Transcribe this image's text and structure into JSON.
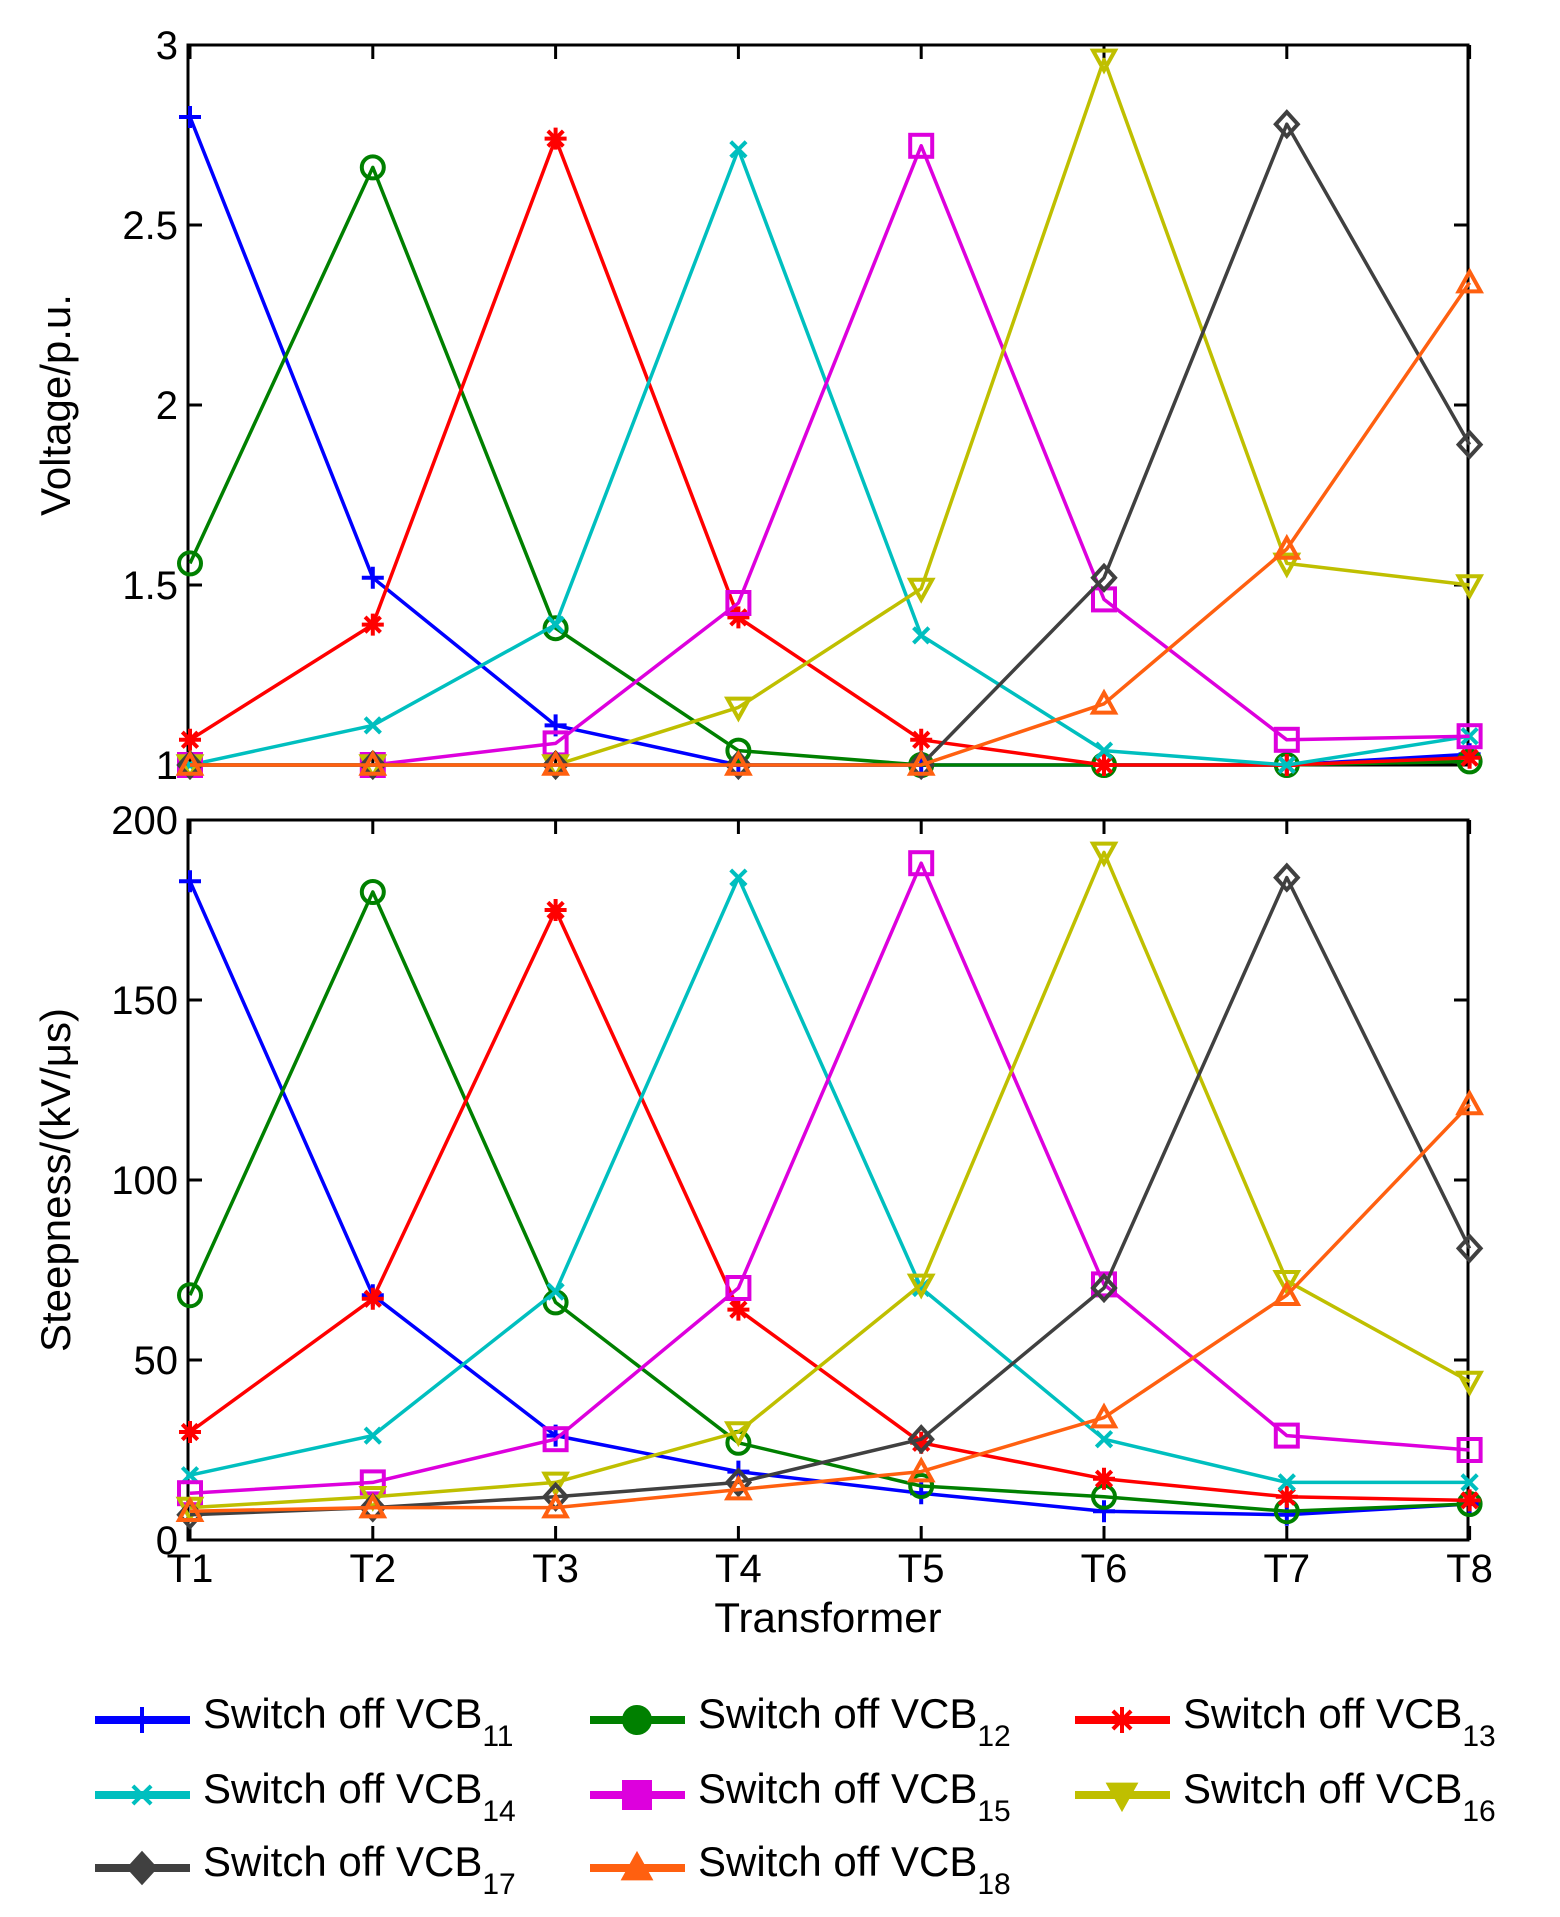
{
  "chart_data": [
    {
      "type": "line",
      "categories": [
        "T1",
        "T2",
        "T3",
        "T4",
        "T5",
        "T6",
        "T7",
        "T8"
      ],
      "ylabel": "Voltage/p.u.",
      "xlabel": "",
      "ylim": [
        1,
        3
      ],
      "yticks": [
        1,
        1.5,
        2,
        2.5,
        3
      ],
      "ytick_labels": [
        "1",
        "1.5",
        "2",
        "2.5",
        "3"
      ],
      "grid": false,
      "series": [
        {
          "name": "Switch off VCB11",
          "values": [
            2.8,
            1.52,
            1.11,
            1.0,
            1.0,
            1.0,
            1.0,
            1.03
          ]
        },
        {
          "name": "Switch off VCB12",
          "values": [
            1.56,
            2.66,
            1.38,
            1.04,
            1.0,
            1.0,
            1.0,
            1.01
          ]
        },
        {
          "name": "Switch off VCB13",
          "values": [
            1.07,
            1.39,
            2.74,
            1.41,
            1.07,
            1.0,
            1.0,
            1.02
          ]
        },
        {
          "name": "Switch off VCB14",
          "values": [
            1.0,
            1.11,
            1.39,
            2.71,
            1.36,
            1.04,
            1.0,
            1.08
          ]
        },
        {
          "name": "Switch off VCB15",
          "values": [
            1.0,
            1.0,
            1.06,
            1.45,
            2.72,
            1.46,
            1.07,
            1.08
          ]
        },
        {
          "name": "Switch off VCB16",
          "values": [
            1.0,
            1.0,
            1.0,
            1.16,
            1.49,
            2.96,
            1.56,
            1.5
          ]
        },
        {
          "name": "Switch off VCB17",
          "values": [
            1.0,
            1.0,
            1.0,
            1.0,
            1.0,
            1.52,
            2.78,
            1.89
          ]
        },
        {
          "name": "Switch off VCB18",
          "values": [
            1.0,
            1.0,
            1.0,
            1.0,
            1.0,
            1.17,
            1.6,
            2.34
          ]
        }
      ]
    },
    {
      "type": "line",
      "categories": [
        "T1",
        "T2",
        "T3",
        "T4",
        "T5",
        "T6",
        "T7",
        "T8"
      ],
      "ylabel": "Steepness/(kV/μs)",
      "xlabel": "Transformer",
      "ylim": [
        0,
        200
      ],
      "yticks": [
        0,
        50,
        100,
        150,
        200
      ],
      "ytick_labels": [
        "0",
        "50",
        "100",
        "150",
        "200"
      ],
      "grid": false,
      "series": [
        {
          "name": "Switch off VCB11",
          "values": [
            183,
            68,
            29,
            19,
            13,
            8,
            7,
            10
          ]
        },
        {
          "name": "Switch off VCB12",
          "values": [
            68,
            180,
            66,
            27,
            15,
            12,
            8,
            10
          ]
        },
        {
          "name": "Switch off VCB13",
          "values": [
            30,
            67,
            175,
            64,
            27,
            17,
            12,
            11
          ]
        },
        {
          "name": "Switch off VCB14",
          "values": [
            18,
            29,
            69,
            184,
            70,
            28,
            16,
            16
          ]
        },
        {
          "name": "Switch off VCB15",
          "values": [
            13,
            16,
            28,
            70,
            188,
            71,
            29,
            25
          ]
        },
        {
          "name": "Switch off VCB16",
          "values": [
            9,
            12,
            16,
            30,
            71,
            191,
            72,
            44
          ]
        },
        {
          "name": "Switch off VCB17",
          "values": [
            7,
            9,
            12,
            16,
            28,
            70,
            184,
            81
          ]
        },
        {
          "name": "Switch off VCB18",
          "values": [
            8,
            9,
            9,
            14,
            19,
            34,
            68,
            121
          ]
        }
      ]
    }
  ],
  "legend": {
    "placement": "bottom",
    "items": [
      {
        "prefix": "Switch off VCB",
        "sub": "11",
        "color": "#0000FF",
        "marker": "plus"
      },
      {
        "prefix": "Switch off VCB",
        "sub": "12",
        "color": "#008000",
        "marker": "circle"
      },
      {
        "prefix": "Switch off VCB",
        "sub": "13",
        "color": "#FF0000",
        "marker": "star"
      },
      {
        "prefix": "Switch off VCB",
        "sub": "14",
        "color": "#00BFBF",
        "marker": "x"
      },
      {
        "prefix": "Switch off VCB",
        "sub": "15",
        "color": "#DD00DD",
        "marker": "square"
      },
      {
        "prefix": "Switch off VCB",
        "sub": "16",
        "color": "#BFBF00",
        "marker": "triangle-down"
      },
      {
        "prefix": "Switch off VCB",
        "sub": "17",
        "color": "#404040",
        "marker": "diamond"
      },
      {
        "prefix": "Switch off VCB",
        "sub": "18",
        "color": "#FF6010",
        "marker": "triangle-up"
      }
    ]
  }
}
